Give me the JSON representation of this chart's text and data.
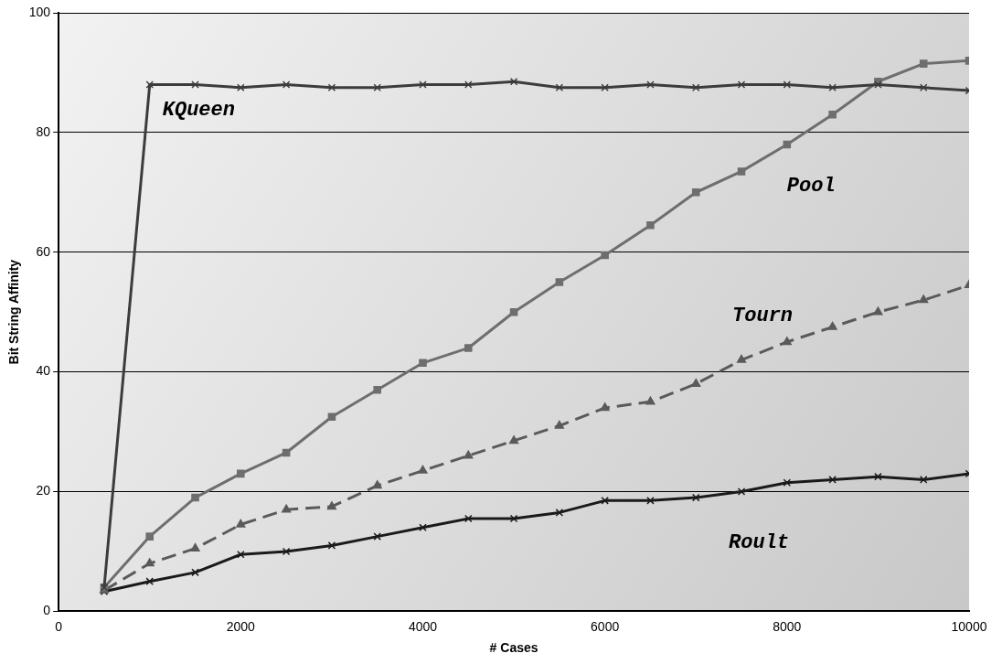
{
  "chart_data": {
    "type": "line",
    "xlabel": "# Cases",
    "ylabel": "Bit String Affinity",
    "x": [
      500,
      1000,
      1500,
      2000,
      2500,
      3000,
      3500,
      4000,
      4500,
      5000,
      5500,
      6000,
      6500,
      7000,
      7500,
      8000,
      8500,
      9000,
      9500,
      10000
    ],
    "series": [
      {
        "name": "KQueen",
        "color": "#3c3c3c",
        "marker": "cross",
        "line_style": "solid",
        "values": [
          4,
          88,
          88,
          87.5,
          88,
          87.5,
          87.5,
          88,
          88,
          88.5,
          87.5,
          87.5,
          88,
          87.5,
          88,
          88,
          87.5,
          88,
          87.5,
          87
        ]
      },
      {
        "name": "Pool",
        "color": "#6e6e6e",
        "marker": "square",
        "line_style": "solid",
        "values": [
          4,
          12.5,
          19,
          23,
          26.5,
          32.5,
          37,
          41.5,
          44,
          50,
          55,
          59.5,
          64.5,
          70,
          73.5,
          78,
          83,
          88.5,
          91.5,
          92
        ]
      },
      {
        "name": "Tourn",
        "color": "#5a5a5a",
        "marker": "triangle",
        "line_style": "dashed",
        "values": [
          3.5,
          8,
          10.5,
          14.5,
          17,
          17.5,
          21,
          23.5,
          26,
          28.5,
          31,
          34,
          35,
          38,
          42,
          45,
          47.5,
          50,
          52,
          54.5
        ]
      },
      {
        "name": "Roult",
        "color": "#1a1a1a",
        "marker": "cross",
        "line_style": "solid",
        "values": [
          3.3,
          5,
          6.5,
          9.5,
          10,
          11,
          12.5,
          14,
          15.5,
          15.5,
          16.5,
          18.5,
          18.5,
          19,
          20,
          21.5,
          22,
          22.5,
          22,
          23
        ]
      }
    ],
    "xlim": [
      0,
      10000
    ],
    "ylim": [
      0,
      100
    ],
    "xticks": [
      0,
      2000,
      4000,
      6000,
      8000,
      10000
    ],
    "yticks": [
      0,
      20,
      40,
      60,
      80,
      100
    ],
    "grid": "y",
    "legend": false
  }
}
